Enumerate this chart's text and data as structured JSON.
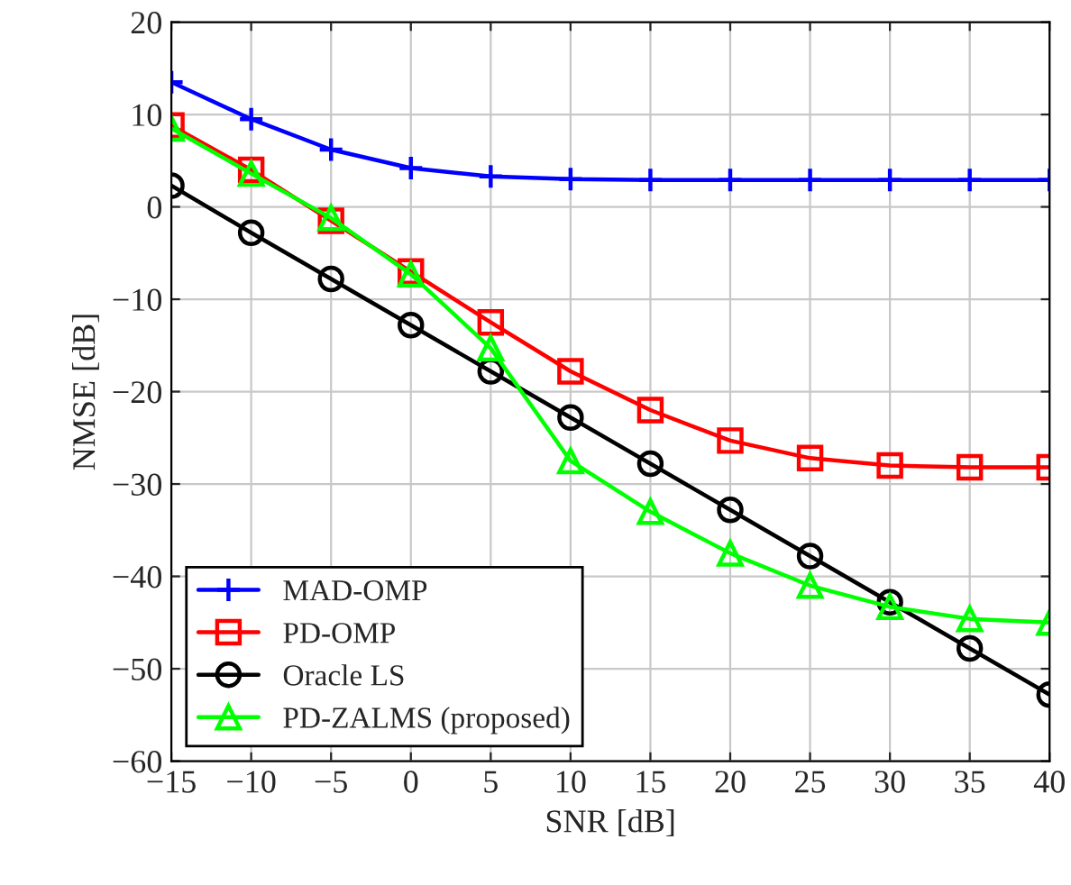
{
  "chart_data": {
    "type": "line",
    "xlabel": "SNR [dB]",
    "ylabel": "NMSE [dB]",
    "x": [
      -15,
      -10,
      -5,
      0,
      5,
      10,
      15,
      20,
      25,
      30,
      35,
      40
    ],
    "series": [
      {
        "name": "MAD-OMP",
        "color": "#0000ff",
        "marker": "cross",
        "values": [
          13.5,
          9.5,
          6.2,
          4.2,
          3.3,
          3.0,
          2.9,
          2.9,
          2.9,
          2.9,
          2.9,
          2.9
        ]
      },
      {
        "name": "PD-OMP",
        "color": "#ff0000",
        "marker": "square",
        "values": [
          8.8,
          4.0,
          -1.5,
          -7.0,
          -12.5,
          -17.8,
          -22.0,
          -25.3,
          -27.2,
          -28.0,
          -28.2,
          -28.2
        ]
      },
      {
        "name": "Oracle LS",
        "color": "#000000",
        "marker": "circle",
        "values": [
          2.3,
          -2.8,
          -7.8,
          -12.8,
          -17.8,
          -22.8,
          -27.8,
          -32.8,
          -37.8,
          -42.8,
          -47.8,
          -52.8
        ]
      },
      {
        "name": "PD-ZALMS (proposed)",
        "color": "#00ff00",
        "marker": "triangle",
        "values": [
          8.5,
          3.6,
          -1.2,
          -7.3,
          -15.3,
          -27.5,
          -33.0,
          -37.5,
          -41.0,
          -43.3,
          -44.6,
          -45.0
        ]
      }
    ],
    "xlim": [
      -15,
      40
    ],
    "xticks": [
      -15,
      -10,
      -5,
      0,
      5,
      10,
      15,
      20,
      25,
      30,
      35,
      40
    ],
    "ylim": [
      -60,
      20
    ],
    "yticks": [
      -60,
      -50,
      -40,
      -30,
      -20,
      -10,
      0,
      10,
      20
    ],
    "grid": true,
    "legend": "bottom left",
    "line_style": "solid"
  }
}
